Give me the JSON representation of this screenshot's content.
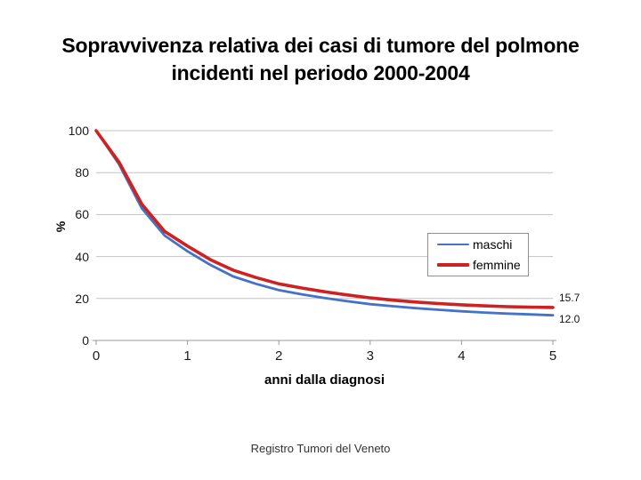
{
  "slide": {
    "title_line1": "Sopravvivenza relativa dei casi di tumore del polmone",
    "title_line2": "incidenti nel periodo 2000-2004",
    "footer": "Registro Tumori del Veneto"
  },
  "chart_data": {
    "type": "line",
    "title": "Sopravvivenza relativa dei casi di tumore del polmone incidenti nel periodo 2000-2004",
    "xlabel": "anni dalla diagnosi",
    "ylabel": "%",
    "xlim": [
      0,
      5
    ],
    "ylim": [
      0,
      100
    ],
    "x_ticks": [
      0,
      1,
      2,
      3,
      4,
      5
    ],
    "y_ticks": [
      0,
      20,
      40,
      60,
      80,
      100
    ],
    "grid": "horizontal-only",
    "gridline_color": "#c3c3c3",
    "axis_color": "#9a9a9a",
    "legend_position": "middle-right-box",
    "x": [
      0,
      0.25,
      0.5,
      0.75,
      1,
      1.25,
      1.5,
      1.75,
      2,
      2.25,
      2.5,
      2.75,
      3,
      3.25,
      3.5,
      3.75,
      4,
      4.25,
      4.5,
      4.75,
      5
    ],
    "series": [
      {
        "name": "maschi",
        "color": "#4472C8",
        "stroke_width": 2.8,
        "end_label": "12.0",
        "values": [
          100,
          84,
          63,
          50,
          42.5,
          36,
          30.5,
          27,
          24,
          22,
          20.2,
          18.7,
          17.3,
          16.3,
          15.4,
          14.6,
          13.9,
          13.3,
          12.8,
          12.4,
          12.0
        ]
      },
      {
        "name": "femmine",
        "color": "#CC2222",
        "stroke_width": 3.6,
        "end_label": "15.7",
        "values": [
          100,
          85,
          65,
          52,
          45,
          38.5,
          33.5,
          30,
          27,
          25,
          23.2,
          21.7,
          20.3,
          19.2,
          18.3,
          17.6,
          17.0,
          16.5,
          16.1,
          15.9,
          15.7
        ]
      }
    ]
  }
}
